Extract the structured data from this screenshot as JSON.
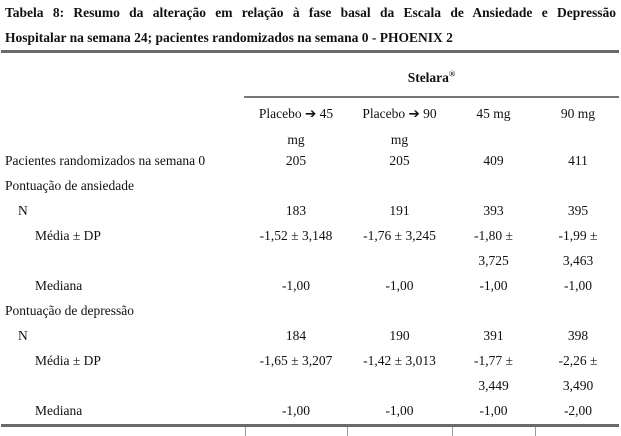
{
  "caption": {
    "line1": "Tabela 8: Resumo da alteração em relação à fase basal da Escala de Ansiedade e Depressão",
    "line2": "Hospitalar na semana 24; pacientes randomizados na semana 0 - PHOENIX 2"
  },
  "table": {
    "group_header": {
      "brand": "Stelara",
      "registered_mark": "®"
    },
    "columns": [
      [
        "Placebo ➔ 45",
        "mg"
      ],
      [
        "Placebo ➔ 90",
        "mg"
      ],
      "45 mg",
      "90 mg"
    ],
    "rows": [
      {
        "label": "Pacientes randomizados na semana 0",
        "values": [
          "205",
          "205",
          "409",
          "411"
        ]
      },
      {
        "label": "Pontuação de ansiedade",
        "values": [
          "",
          "",
          "",
          ""
        ]
      },
      {
        "label": "N",
        "values": [
          "183",
          "191",
          "393",
          "395"
        ]
      },
      {
        "label": "Média ± DP",
        "values": [
          "-1,52 ± 3,148",
          "-1,76 ± 3,245",
          [
            "-1,80 ±",
            "3,725"
          ],
          [
            "-1,99 ±",
            "3,463"
          ]
        ]
      },
      {
        "label": "Mediana",
        "values": [
          "-1,00",
          "-1,00",
          "-1,00",
          "-1,00"
        ]
      },
      {
        "label": "Pontuação de depressão",
        "values": [
          "",
          "",
          "",
          ""
        ]
      },
      {
        "label": "N",
        "values": [
          "184",
          "190",
          "391",
          "398"
        ]
      },
      {
        "label": "Média ± DP",
        "values": [
          "-1,65 ± 3,207",
          "-1,42 ± 3,013",
          [
            "-1,77 ±",
            "3,449"
          ],
          [
            "-2,26 ±",
            "3,490"
          ]
        ]
      },
      {
        "label": "Mediana",
        "values": [
          "-1,00",
          "-1,00",
          "-1,00",
          "-2,00"
        ]
      }
    ]
  }
}
